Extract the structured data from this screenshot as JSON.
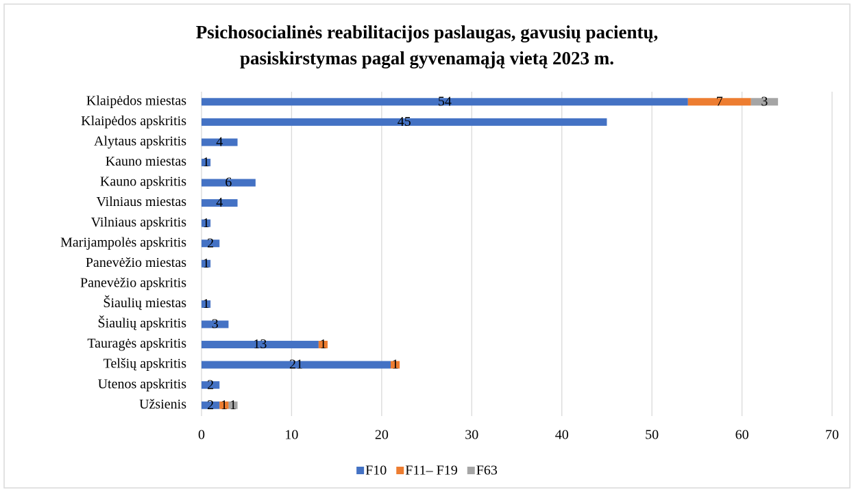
{
  "chart_data": {
    "type": "bar",
    "orientation": "horizontal",
    "stacked": true,
    "title": "Psichosocialinės reabilitacijos paslaugas, gavusių pacientų, pasiskirstymas pagal gyvenamąją vietą 2023 m.",
    "categories": [
      "Klaipėdos miestas",
      "Klaipėdos apskritis",
      "Alytaus apskritis",
      "Kauno miestas",
      "Kauno apskritis",
      "Vilniaus miestas",
      "Vilniaus apskritis",
      "Marijampolės apskritis",
      "Panevėžio miestas",
      "Panevėžio apskritis",
      "Šiaulių miestas",
      "Šiaulių apskritis",
      "Tauragės apskritis",
      "Telšių apskritis",
      "Utenos apskritis",
      "Užsienis"
    ],
    "series": [
      {
        "name": "F10",
        "color": "#4472c4",
        "values": [
          54,
          45,
          4,
          1,
          6,
          4,
          1,
          2,
          1,
          null,
          1,
          3,
          13,
          21,
          2,
          2
        ]
      },
      {
        "name": "F11– F19",
        "color": "#ed7d31",
        "values": [
          7,
          null,
          null,
          null,
          null,
          null,
          null,
          null,
          null,
          null,
          null,
          null,
          1,
          1,
          null,
          1
        ]
      },
      {
        "name": "F63",
        "color": "#a5a5a5",
        "values": [
          3,
          null,
          null,
          null,
          null,
          null,
          null,
          null,
          null,
          null,
          null,
          null,
          null,
          null,
          null,
          1
        ]
      }
    ],
    "xlim": [
      0,
      70
    ],
    "xticks": [
      0,
      10,
      20,
      30,
      40,
      50,
      60,
      70
    ],
    "grid": true,
    "legend": "bottom"
  }
}
